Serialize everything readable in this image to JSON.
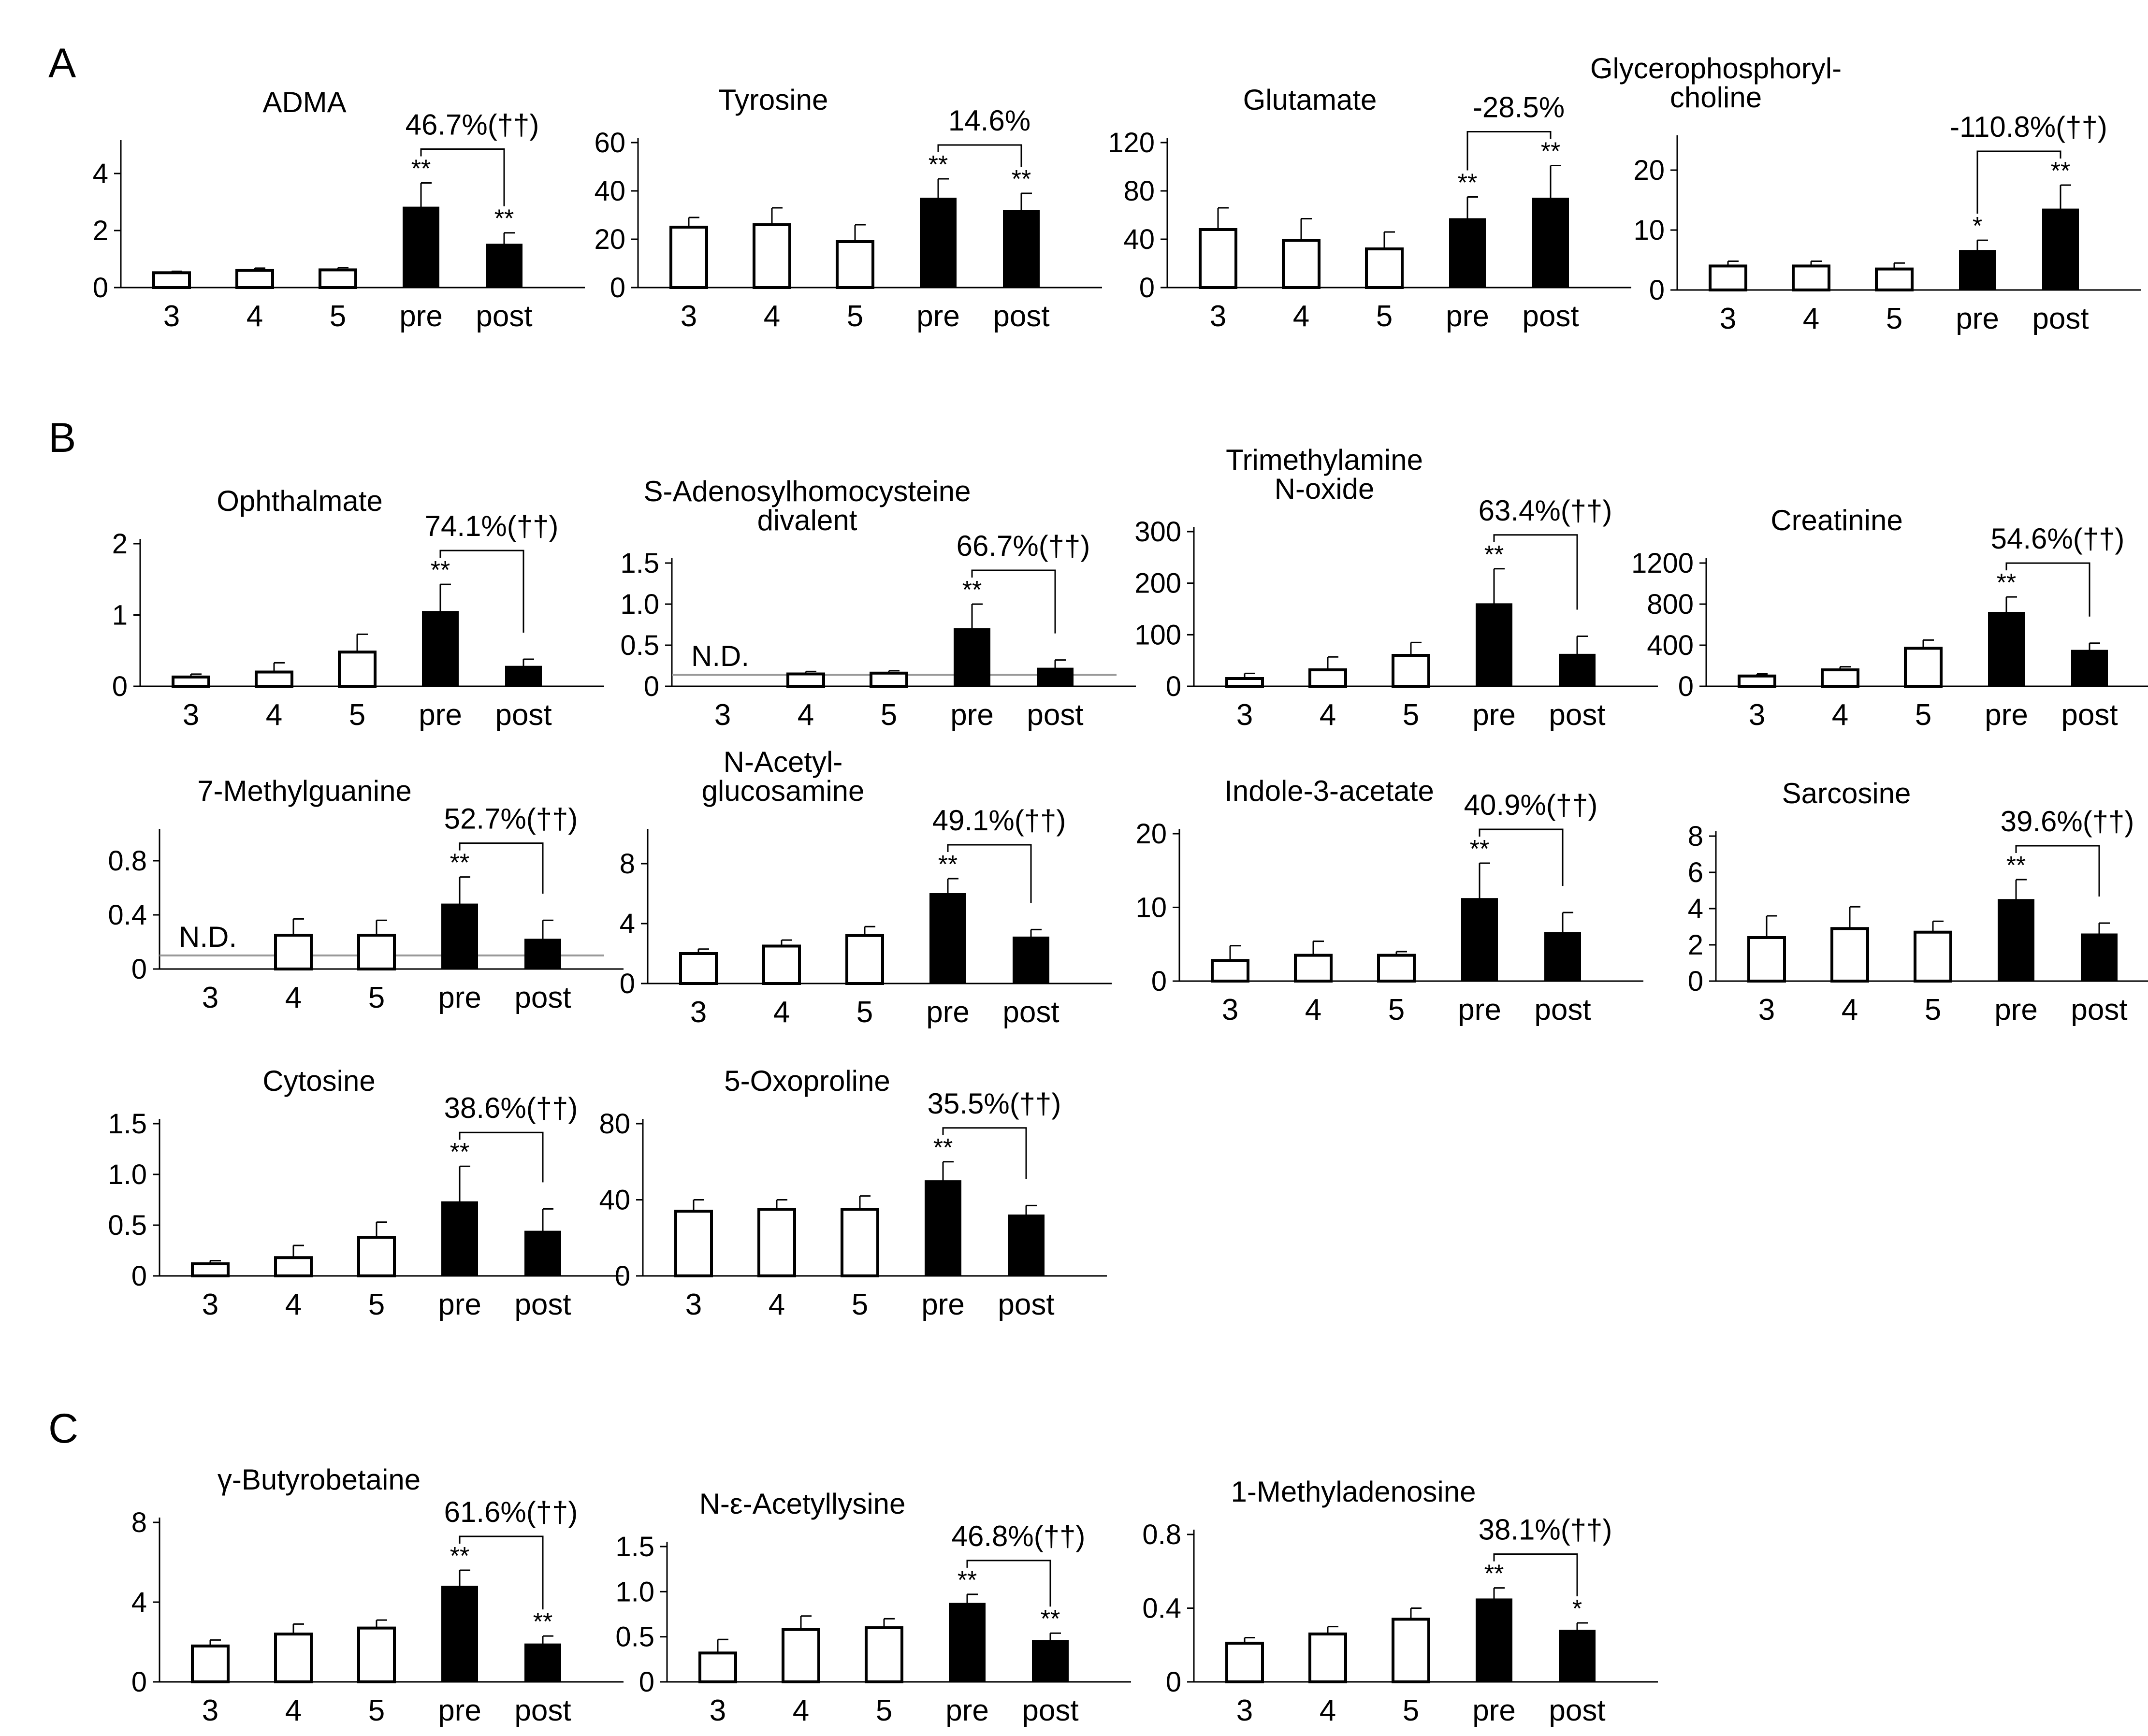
{
  "section_labels": [
    "A",
    "B",
    "C"
  ],
  "chart_data": [
    {
      "id": "admaChart",
      "section": "A",
      "type": "bar",
      "title_lines": [
        "ADMA"
      ],
      "categories": [
        "3",
        "4",
        "5",
        "pre",
        "post"
      ],
      "values": [
        0.52,
        0.6,
        0.62,
        2.82,
        1.52
      ],
      "errors": [
        0.05,
        0.08,
        0.08,
        0.85,
        0.4
      ],
      "fills": [
        "white",
        "white",
        "white",
        "black",
        "black"
      ],
      "ylim": [
        0,
        5
      ],
      "yticks": [
        0,
        2,
        4
      ],
      "ytick_labels": [
        "0",
        "2",
        "4"
      ],
      "significance": [
        "",
        "",
        "",
        "**",
        "**"
      ],
      "change_label": "46.7%(††)",
      "nd_level": null,
      "nd_label": ""
    },
    {
      "id": "tyrosineChart",
      "section": "A",
      "type": "bar",
      "title_lines": [
        "Tyrosine"
      ],
      "categories": [
        "3",
        "4",
        "5",
        "pre",
        "post"
      ],
      "values": [
        25,
        26,
        19,
        37,
        32
      ],
      "errors": [
        4,
        7,
        7,
        8,
        7
      ],
      "fills": [
        "white",
        "white",
        "white",
        "black",
        "black"
      ],
      "ylim": [
        0,
        60
      ],
      "yticks": [
        0,
        20,
        40,
        60
      ],
      "ytick_labels": [
        "0",
        "20",
        "40",
        "60"
      ],
      "significance": [
        "",
        "",
        "",
        "**",
        "**"
      ],
      "change_label": "14.6%",
      "nd_level": null,
      "nd_label": ""
    },
    {
      "id": "glutamateChart",
      "section": "A",
      "type": "bar",
      "title_lines": [
        "Glutamate"
      ],
      "categories": [
        "3",
        "4",
        "5",
        "pre",
        "post"
      ],
      "values": [
        48,
        39,
        32,
        57,
        74
      ],
      "errors": [
        18,
        18,
        14,
        18,
        27
      ],
      "fills": [
        "white",
        "white",
        "white",
        "black",
        "black"
      ],
      "ylim": [
        0,
        120
      ],
      "yticks": [
        0,
        40,
        80,
        120
      ],
      "ytick_labels": [
        "0",
        "40",
        "80",
        "120"
      ],
      "significance": [
        "",
        "",
        "",
        "**",
        "**"
      ],
      "change_label": "-28.5%",
      "nd_level": null,
      "nd_label": ""
    },
    {
      "id": "gpcChart",
      "section": "A",
      "type": "bar",
      "title_lines": [
        "Glycerophosphoryl-",
        "choline"
      ],
      "categories": [
        "3",
        "4",
        "5",
        "pre",
        "post"
      ],
      "values": [
        4,
        4,
        3.5,
        6.6,
        13.5
      ],
      "errors": [
        0.8,
        0.8,
        1,
        1.7,
        4
      ],
      "fills": [
        "white",
        "white",
        "white",
        "black",
        "black"
      ],
      "ylim": [
        0,
        25
      ],
      "yticks": [
        0,
        10,
        20
      ],
      "ytick_labels": [
        "0",
        "10",
        "20"
      ],
      "significance": [
        "",
        "",
        "",
        "*",
        "**"
      ],
      "change_label": "-110.8%(††)",
      "nd_level": null,
      "nd_label": ""
    },
    {
      "id": "ophthalmateChart",
      "section": "B",
      "type": "bar",
      "title_lines": [
        "Ophthalmate"
      ],
      "categories": [
        "3",
        "4",
        "5",
        "pre",
        "post"
      ],
      "values": [
        0.13,
        0.2,
        0.48,
        1.05,
        0.28
      ],
      "errors": [
        0.04,
        0.13,
        0.25,
        0.38,
        0.1
      ],
      "fills": [
        "white",
        "white",
        "white",
        "black",
        "black"
      ],
      "ylim": [
        0,
        2
      ],
      "yticks": [
        0,
        1,
        2
      ],
      "ytick_labels": [
        "0",
        "1",
        "2"
      ],
      "significance": [
        "",
        "",
        "",
        "**",
        ""
      ],
      "change_label": "74.1%(††)",
      "nd_level": null,
      "nd_label": ""
    },
    {
      "id": "sahChart",
      "section": "B",
      "type": "bar",
      "title_lines": [
        "S-Adenosylhomocysteine",
        "divalent"
      ],
      "categories": [
        "3",
        "4",
        "5",
        "pre",
        "post"
      ],
      "values": [
        null,
        0.15,
        0.16,
        0.7,
        0.22
      ],
      "errors": [
        null,
        0.03,
        0.03,
        0.3,
        0.1
      ],
      "fills": [
        "white",
        "white",
        "white",
        "black",
        "black"
      ],
      "ylim": [
        0,
        1.5
      ],
      "yticks": [
        0,
        0.5,
        1,
        1.5
      ],
      "ytick_labels": [
        "0",
        "0.5",
        "1.0",
        "1.5"
      ],
      "significance": [
        "",
        "",
        "",
        "**",
        ""
      ],
      "change_label": "66.7%(††)",
      "nd_level": 0.14,
      "nd_label": "N.D."
    },
    {
      "id": "tmaoChart",
      "section": "B",
      "type": "bar",
      "title_lines": [
        "Trimethylamine",
        "N-oxide"
      ],
      "categories": [
        "3",
        "4",
        "5",
        "pre",
        "post"
      ],
      "values": [
        15,
        32,
        60,
        160,
        62
      ],
      "errors": [
        10,
        25,
        25,
        68,
        35
      ],
      "fills": [
        "white",
        "white",
        "white",
        "black",
        "black"
      ],
      "ylim": [
        0,
        300
      ],
      "yticks": [
        0,
        100,
        200,
        300
      ],
      "ytick_labels": [
        "0",
        "100",
        "200",
        "300"
      ],
      "significance": [
        "",
        "",
        "",
        "**",
        ""
      ],
      "change_label": "63.4%(††)",
      "nd_level": null,
      "nd_label": ""
    },
    {
      "id": "creatinineChart",
      "section": "B",
      "type": "bar",
      "title_lines": [
        "Creatinine"
      ],
      "categories": [
        "3",
        "4",
        "5",
        "pre",
        "post"
      ],
      "values": [
        100,
        160,
        370,
        720,
        350
      ],
      "errors": [
        20,
        30,
        80,
        150,
        70
      ],
      "fills": [
        "white",
        "white",
        "white",
        "black",
        "black"
      ],
      "ylim": [
        0,
        1200
      ],
      "yticks": [
        0,
        400,
        800,
        1200
      ],
      "ytick_labels": [
        "0",
        "400",
        "800",
        "1200"
      ],
      "significance": [
        "",
        "",
        "",
        "**",
        ""
      ],
      "change_label": "54.6%(††)",
      "nd_level": null,
      "nd_label": ""
    },
    {
      "id": "methylguanineChart",
      "section": "B",
      "type": "bar",
      "title_lines": [
        "7-Methylguanine"
      ],
      "categories": [
        "3",
        "4",
        "5",
        "pre",
        "post"
      ],
      "values": [
        null,
        0.25,
        0.25,
        0.48,
        0.22
      ],
      "errors": [
        null,
        0.12,
        0.11,
        0.2,
        0.14
      ],
      "fills": [
        "white",
        "white",
        "white",
        "black",
        "black"
      ],
      "ylim": [
        0,
        1
      ],
      "yticks": [
        0,
        0.4,
        0.8
      ],
      "ytick_labels": [
        "0",
        "0.4",
        "0.8"
      ],
      "significance": [
        "",
        "",
        "",
        "**",
        ""
      ],
      "change_label": "52.7%(††)",
      "nd_level": 0.1,
      "nd_label": "N.D."
    },
    {
      "id": "glcnacChart",
      "section": "B",
      "type": "bar",
      "title_lines": [
        "N-Acetyl-",
        "glucosamine"
      ],
      "categories": [
        "3",
        "4",
        "5",
        "pre",
        "post"
      ],
      "values": [
        2,
        2.5,
        3.2,
        6,
        3.1
      ],
      "errors": [
        0.3,
        0.4,
        0.6,
        1,
        0.5
      ],
      "fills": [
        "white",
        "white",
        "white",
        "black",
        "black"
      ],
      "ylim": [
        0,
        10
      ],
      "yticks": [
        0,
        4,
        8
      ],
      "ytick_labels": [
        "0",
        "4",
        "8"
      ],
      "significance": [
        "",
        "",
        "",
        "**",
        ""
      ],
      "change_label": "49.1%(††)",
      "nd_level": null,
      "nd_label": ""
    },
    {
      "id": "indoleChart",
      "section": "B",
      "type": "bar",
      "title_lines": [
        "Indole-3-acetate"
      ],
      "categories": [
        "3",
        "4",
        "5",
        "pre",
        "post"
      ],
      "values": [
        2.8,
        3.5,
        3.5,
        11.2,
        6.6
      ],
      "errors": [
        2,
        1.9,
        0.5,
        4.8,
        2.7
      ],
      "fills": [
        "white",
        "white",
        "white",
        "black",
        "black"
      ],
      "ylim": [
        0,
        20
      ],
      "yticks": [
        0,
        10,
        20
      ],
      "ytick_labels": [
        "0",
        "10",
        "20"
      ],
      "significance": [
        "",
        "",
        "",
        "**",
        ""
      ],
      "change_label": "40.9%(††)",
      "nd_level": null,
      "nd_label": ""
    },
    {
      "id": "sarcosineChart",
      "section": "B",
      "type": "bar",
      "title_lines": [
        "Sarcosine"
      ],
      "categories": [
        "3",
        "4",
        "5",
        "pre",
        "post"
      ],
      "values": [
        2.4,
        2.9,
        2.7,
        4.5,
        2.6
      ],
      "errors": [
        1.2,
        1.2,
        0.6,
        1.1,
        0.6
      ],
      "fills": [
        "white",
        "white",
        "white",
        "black",
        "black"
      ],
      "ylim": [
        0,
        8
      ],
      "yticks": [
        0,
        2,
        4,
        6,
        8
      ],
      "ytick_labels": [
        "0",
        "2",
        "4",
        "6",
        "8"
      ],
      "significance": [
        "",
        "",
        "",
        "**",
        ""
      ],
      "change_label": "39.6%(††)",
      "nd_level": null,
      "nd_label": ""
    },
    {
      "id": "cytosineChart",
      "section": "B",
      "type": "bar",
      "title_lines": [
        "Cytosine"
      ],
      "categories": [
        "3",
        "4",
        "5",
        "pre",
        "post"
      ],
      "values": [
        0.12,
        0.18,
        0.38,
        0.73,
        0.44
      ],
      "errors": [
        0.03,
        0.12,
        0.15,
        0.35,
        0.22
      ],
      "fills": [
        "white",
        "white",
        "white",
        "black",
        "black"
      ],
      "ylim": [
        0,
        1.5
      ],
      "yticks": [
        0,
        0.5,
        1,
        1.5
      ],
      "ytick_labels": [
        "0",
        "0.5",
        "1.0",
        "1.5"
      ],
      "significance": [
        "",
        "",
        "",
        "**",
        ""
      ],
      "change_label": "38.6%(††)",
      "nd_level": null,
      "nd_label": ""
    },
    {
      "id": "oxoprolineChart",
      "section": "B",
      "type": "bar",
      "title_lines": [
        "5-Oxoproline"
      ],
      "categories": [
        "3",
        "4",
        "5",
        "pre",
        "post"
      ],
      "values": [
        34,
        35,
        35,
        50,
        32
      ],
      "errors": [
        6,
        5,
        7,
        10,
        5
      ],
      "fills": [
        "white",
        "white",
        "white",
        "black",
        "black"
      ],
      "ylim": [
        0,
        80
      ],
      "yticks": [
        0,
        40,
        80
      ],
      "ytick_labels": [
        "0",
        "40",
        "80"
      ],
      "significance": [
        "",
        "",
        "",
        "**",
        ""
      ],
      "change_label": "35.5%(††)",
      "nd_level": null,
      "nd_label": ""
    },
    {
      "id": "butyrobetaineChart",
      "section": "C",
      "type": "bar",
      "title_lines": [
        "γ-Butyrobetaine"
      ],
      "categories": [
        "3",
        "4",
        "5",
        "pre",
        "post"
      ],
      "values": [
        1.8,
        2.4,
        2.7,
        4.8,
        1.9
      ],
      "errors": [
        0.3,
        0.5,
        0.4,
        0.8,
        0.4
      ],
      "fills": [
        "white",
        "white",
        "white",
        "black",
        "black"
      ],
      "ylim": [
        0,
        8
      ],
      "yticks": [
        0,
        4,
        8
      ],
      "ytick_labels": [
        "0",
        "4",
        "8"
      ],
      "significance": [
        "",
        "",
        "",
        "**",
        "**"
      ],
      "change_label": "61.6%(††)",
      "nd_level": null,
      "nd_label": ""
    },
    {
      "id": "acetyllysineChart",
      "section": "C",
      "type": "bar",
      "title_lines": [
        "N-ε-Acetyllysine"
      ],
      "categories": [
        "3",
        "4",
        "5",
        "pre",
        "post"
      ],
      "values": [
        0.32,
        0.58,
        0.6,
        0.87,
        0.46
      ],
      "errors": [
        0.15,
        0.15,
        0.1,
        0.1,
        0.08
      ],
      "fills": [
        "white",
        "white",
        "white",
        "black",
        "black"
      ],
      "ylim": [
        0,
        1.5
      ],
      "yticks": [
        0,
        0.5,
        1,
        1.5
      ],
      "ytick_labels": [
        "0",
        "0.5",
        "1.0",
        "1.5"
      ],
      "significance": [
        "",
        "",
        "",
        "**",
        "**"
      ],
      "change_label": "46.8%(††)",
      "nd_level": null,
      "nd_label": ""
    },
    {
      "id": "methyladenosineChart",
      "section": "C",
      "type": "bar",
      "title_lines": [
        "1-Methyladenosine"
      ],
      "categories": [
        "3",
        "4",
        "5",
        "pre",
        "post"
      ],
      "values": [
        0.21,
        0.26,
        0.34,
        0.45,
        0.28
      ],
      "errors": [
        0.03,
        0.04,
        0.06,
        0.06,
        0.04
      ],
      "fills": [
        "white",
        "white",
        "white",
        "black",
        "black"
      ],
      "ylim": [
        0,
        0.8
      ],
      "yticks": [
        0,
        0.4,
        0.8
      ],
      "ytick_labels": [
        "0",
        "0.4",
        "0.8"
      ],
      "significance": [
        "",
        "",
        "",
        "**",
        "*"
      ],
      "change_label": "38.1%(††)",
      "nd_level": null,
      "nd_label": ""
    }
  ]
}
